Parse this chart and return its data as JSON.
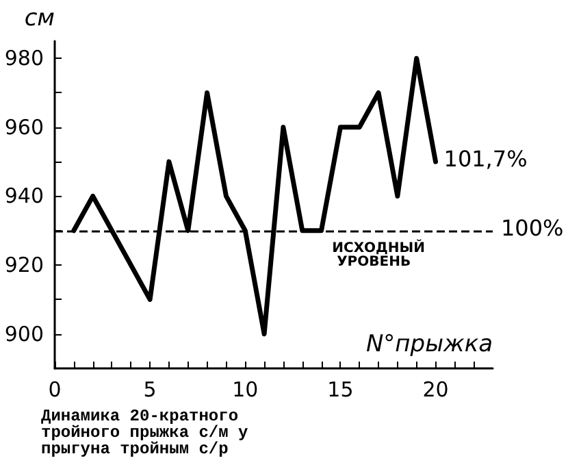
{
  "chart_data": {
    "type": "line",
    "title": "Динамика 20-кратного тройного прыжка с/м у прыгуна тройным с/р",
    "xlabel": "N°прыжка",
    "ylabel": "см",
    "x": [
      1,
      2,
      5,
      6,
      7,
      8,
      9,
      10,
      11,
      12,
      13,
      14,
      15,
      16,
      17,
      18,
      19,
      20
    ],
    "series": [
      {
        "color": "#000000",
        "values": [
          930,
          940,
          910,
          950,
          930,
          970,
          940,
          930,
          900,
          960,
          930,
          930,
          960,
          960,
          970,
          940,
          980,
          950
        ]
      }
    ],
    "xlim": [
      0,
      23
    ],
    "xticks": [
      0,
      {
        "value": 1,
        "label": null
      },
      {
        "value": 2,
        "label": null
      },
      {
        "value": 3,
        "label": null
      },
      {
        "value": 4,
        "label": null
      },
      5,
      {
        "value": 6,
        "label": null
      },
      {
        "value": 7,
        "label": null
      },
      {
        "value": 8,
        "label": null
      },
      {
        "value": 9,
        "label": null
      },
      10,
      {
        "value": 11,
        "label": null
      },
      {
        "value": 12,
        "label": null
      },
      {
        "value": 13,
        "label": null
      },
      {
        "value": 14,
        "label": null
      },
      15,
      {
        "value": 16,
        "label": null
      },
      {
        "value": 17,
        "label": null
      },
      {
        "value": 18,
        "label": null
      },
      {
        "value": 19,
        "label": null
      },
      20,
      {
        "value": 21,
        "label": null
      },
      {
        "value": 22,
        "label": null
      }
    ],
    "ylim": [
      890,
      985
    ],
    "yticks": [
      900,
      {
        "value": 910,
        "label": null
      },
      920,
      {
        "value": 930,
        "label": null
      },
      940,
      {
        "value": 950,
        "label": null
      },
      960,
      {
        "value": 970,
        "label": null
      },
      980
    ],
    "ref_lines": [
      {
        "axis": "y",
        "value": 930,
        "line_style": "dashed",
        "color": "#000000"
      }
    ],
    "annotations": [
      {
        "text": "101,7%",
        "x": 20,
        "y": 950
      },
      {
        "text": "ИСХОДНЫЙ УРОВЕНЬ",
        "x": 16,
        "y": 930
      },
      "100%"
    ],
    "grid": false,
    "marker": "none",
    "line_style": "solid"
  }
}
